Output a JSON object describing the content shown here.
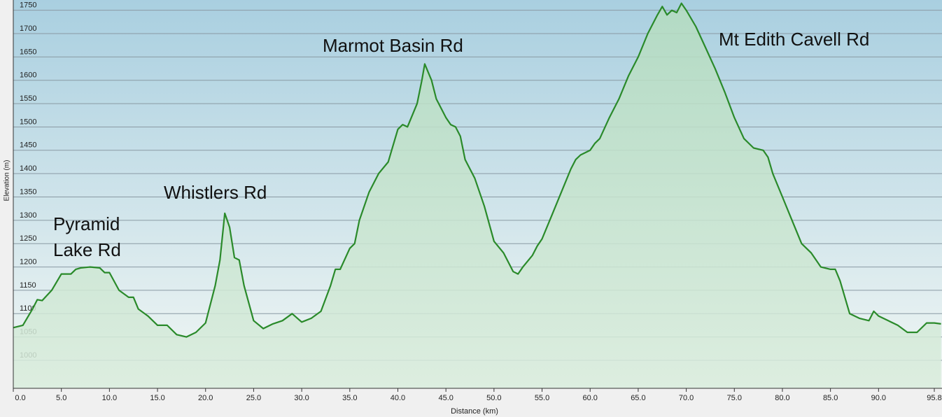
{
  "chart_data": {
    "type": "line",
    "xlabel": "Distance  (km)",
    "ylabel": "Elevation (m)",
    "annotations": [
      [
        "Pyramid",
        "Lake Rd"
      ],
      [
        "Whistlers Rd"
      ],
      [
        "Marmot Basin Rd"
      ],
      [
        "Mt Edith Cavell Rd"
      ]
    ],
    "x": [
      0,
      1,
      2,
      2.5,
      3,
      4,
      5,
      6,
      6.5,
      7,
      8,
      9,
      9.5,
      10,
      11,
      12,
      12.5,
      13,
      14,
      15,
      16,
      17,
      18,
      19,
      20,
      21,
      21.5,
      22,
      22.5,
      23,
      23.5,
      24,
      25,
      26,
      27,
      28,
      29,
      30,
      31,
      32,
      33,
      33.5,
      34,
      35,
      35.5,
      36,
      37,
      38,
      39,
      39.5,
      40,
      40.5,
      41,
      42,
      42.5,
      42.8,
      43.5,
      44,
      45,
      45.5,
      46,
      46.5,
      47,
      48,
      49,
      50,
      51,
      52,
      52.5,
      53,
      54,
      54.5,
      55,
      56,
      57,
      58,
      58.5,
      59,
      60,
      60.5,
      61,
      62,
      63,
      64,
      65,
      66,
      67,
      67.5,
      68,
      68.5,
      69,
      69.5,
      70,
      71,
      72,
      73,
      74,
      75,
      76,
      77,
      78,
      78.5,
      79,
      80,
      81,
      82,
      83,
      84,
      85,
      85.5,
      86,
      87,
      88,
      89,
      89.5,
      90,
      91,
      92,
      93,
      94,
      95,
      95.8,
      96.5
    ],
    "series": [
      {
        "name": "Elevation",
        "color": "#2a8a2a",
        "values": [
          1070,
          1075,
          1110,
          1130,
          1128,
          1150,
          1185,
          1185,
          1195,
          1198,
          1200,
          1198,
          1188,
          1188,
          1150,
          1135,
          1135,
          1110,
          1095,
          1075,
          1075,
          1055,
          1050,
          1060,
          1080,
          1160,
          1215,
          1315,
          1285,
          1220,
          1215,
          1160,
          1085,
          1068,
          1078,
          1085,
          1100,
          1082,
          1090,
          1105,
          1160,
          1195,
          1195,
          1240,
          1250,
          1300,
          1360,
          1400,
          1425,
          1460,
          1495,
          1505,
          1500,
          1550,
          1600,
          1635,
          1600,
          1560,
          1520,
          1505,
          1500,
          1480,
          1430,
          1390,
          1330,
          1255,
          1230,
          1190,
          1185,
          1200,
          1225,
          1245,
          1260,
          1310,
          1360,
          1410,
          1430,
          1440,
          1450,
          1465,
          1475,
          1520,
          1560,
          1610,
          1650,
          1700,
          1740,
          1758,
          1740,
          1750,
          1745,
          1765,
          1750,
          1715,
          1670,
          1625,
          1575,
          1520,
          1475,
          1455,
          1450,
          1435,
          1400,
          1350,
          1300,
          1250,
          1230,
          1200,
          1195,
          1195,
          1170,
          1100,
          1090,
          1085,
          1105,
          1095,
          1085,
          1075,
          1060,
          1060,
          1080,
          1080,
          1078
        ]
      }
    ],
    "xlim": [
      0,
      96.6
    ],
    "ylim": [
      940,
      1772
    ],
    "xticks": [
      {
        "value": 0,
        "label": "0.0"
      },
      {
        "value": 5,
        "label": "5.0"
      },
      {
        "value": 10,
        "label": "10.0"
      },
      {
        "value": 15,
        "label": "15.0"
      },
      {
        "value": 20,
        "label": "20.0"
      },
      {
        "value": 25,
        "label": "25.0"
      },
      {
        "value": 30,
        "label": "30.0"
      },
      {
        "value": 35,
        "label": "35.0"
      },
      {
        "value": 40,
        "label": "40.0"
      },
      {
        "value": 45,
        "label": "45.0"
      },
      {
        "value": 50,
        "label": "50.0"
      },
      {
        "value": 55,
        "label": "55.0"
      },
      {
        "value": 60,
        "label": "60.0"
      },
      {
        "value": 65,
        "label": "65.0"
      },
      {
        "value": 70,
        "label": "70.0"
      },
      {
        "value": 75,
        "label": "75.0"
      },
      {
        "value": 80,
        "label": "80.0"
      },
      {
        "value": 85,
        "label": "85.0"
      },
      {
        "value": 90,
        "label": "90.0"
      },
      {
        "value": 95.8,
        "label": "95.8"
      }
    ],
    "yticks": [
      1000,
      1050,
      1100,
      1150,
      1200,
      1250,
      1300,
      1350,
      1400,
      1450,
      1500,
      1550,
      1600,
      1650,
      1700,
      1750
    ],
    "grid": true
  }
}
